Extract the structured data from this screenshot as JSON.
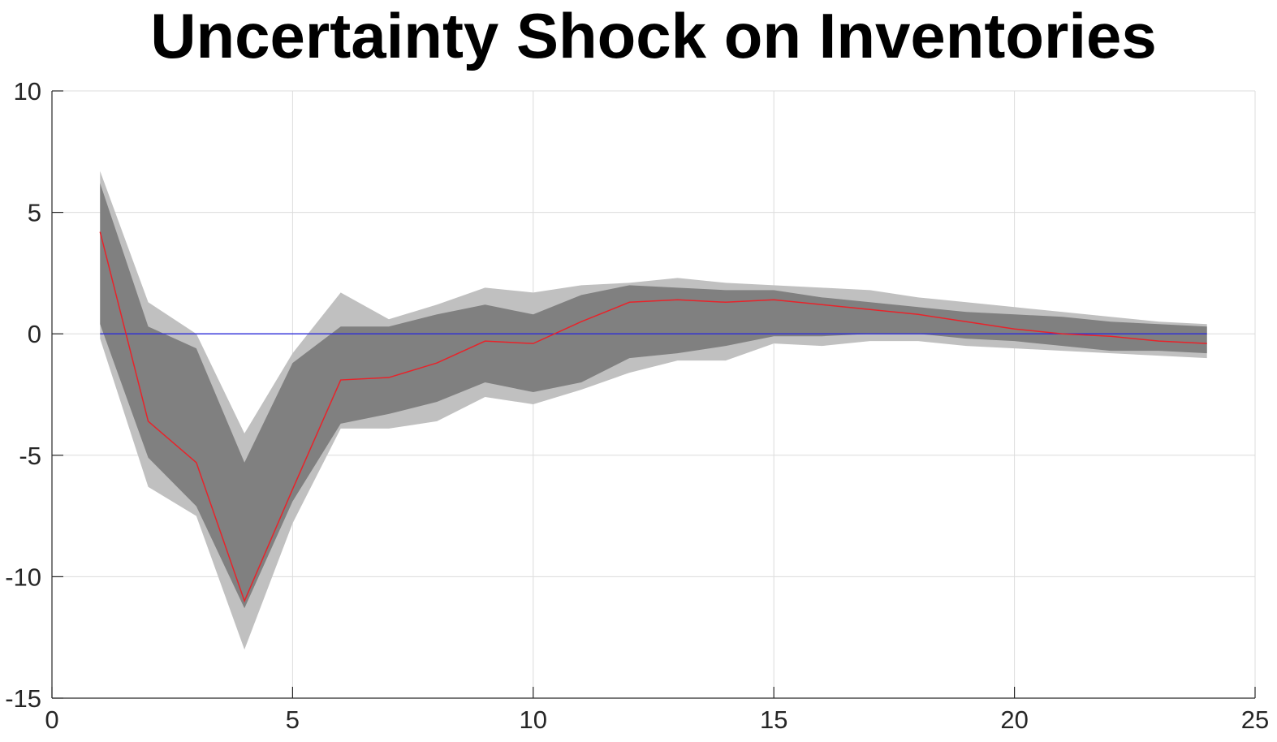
{
  "chart_data": {
    "type": "area",
    "title": "Uncertainty Shock on Inventories",
    "xlabel": "",
    "ylabel": "",
    "xlim": [
      0,
      25
    ],
    "ylim": [
      -15,
      10
    ],
    "xticks": [
      0,
      5,
      10,
      15,
      20,
      25
    ],
    "yticks": [
      10,
      5,
      0,
      -5,
      -10,
      -15
    ],
    "xtick_labels": [
      "0",
      "5",
      "10",
      "15",
      "20",
      "25"
    ],
    "ytick_labels": [
      "10",
      "5",
      "0",
      "-5",
      "-10",
      "-15"
    ],
    "grid": true,
    "x": [
      1,
      2,
      3,
      4,
      5,
      6,
      7,
      8,
      9,
      10,
      11,
      12,
      13,
      14,
      15,
      16,
      17,
      18,
      19,
      20,
      21,
      22,
      23,
      24
    ],
    "bands": [
      {
        "role": "outer",
        "color": "#c0c0c0",
        "upper": [
          6.7,
          1.3,
          0.0,
          -4.1,
          -0.8,
          1.7,
          0.6,
          1.2,
          1.9,
          1.7,
          2.0,
          2.1,
          2.3,
          2.1,
          2.0,
          1.9,
          1.8,
          1.5,
          1.3,
          1.1,
          0.9,
          0.7,
          0.5,
          0.4
        ],
        "lower": [
          -0.2,
          -6.3,
          -7.5,
          -13.0,
          -7.8,
          -3.9,
          -3.9,
          -3.6,
          -2.6,
          -2.9,
          -2.3,
          -1.6,
          -1.1,
          -1.1,
          -0.4,
          -0.5,
          -0.3,
          -0.3,
          -0.5,
          -0.6,
          -0.7,
          -0.8,
          -0.9,
          -1.0
        ]
      },
      {
        "role": "inner",
        "color": "#808080",
        "upper": [
          6.2,
          0.3,
          -0.6,
          -5.3,
          -1.2,
          0.3,
          0.3,
          0.8,
          1.2,
          0.8,
          1.6,
          2.0,
          1.9,
          1.8,
          1.8,
          1.5,
          1.3,
          1.1,
          0.9,
          0.8,
          0.7,
          0.5,
          0.4,
          0.3
        ],
        "lower": [
          0.4,
          -5.1,
          -7.1,
          -11.3,
          -6.9,
          -3.7,
          -3.3,
          -2.8,
          -2.0,
          -2.4,
          -2.0,
          -1.0,
          -0.8,
          -0.5,
          -0.1,
          -0.1,
          0.0,
          0.0,
          -0.2,
          -0.3,
          -0.5,
          -0.7,
          -0.7,
          -0.8
        ]
      }
    ],
    "series": [
      {
        "role": "impulse-response",
        "color": "#e8232a",
        "values": [
          4.2,
          -3.6,
          -5.3,
          -11.0,
          -6.4,
          -1.9,
          -1.8,
          -1.2,
          -0.3,
          -0.4,
          0.5,
          1.3,
          1.4,
          1.3,
          1.4,
          1.2,
          1.0,
          0.8,
          0.5,
          0.2,
          0.0,
          -0.1,
          -0.3,
          -0.4
        ]
      },
      {
        "role": "zero-line",
        "color": "#2b2bd9",
        "values": [
          0,
          0,
          0,
          0,
          0,
          0,
          0,
          0,
          0,
          0,
          0,
          0,
          0,
          0,
          0,
          0,
          0,
          0,
          0,
          0,
          0,
          0,
          0,
          0
        ]
      }
    ]
  }
}
